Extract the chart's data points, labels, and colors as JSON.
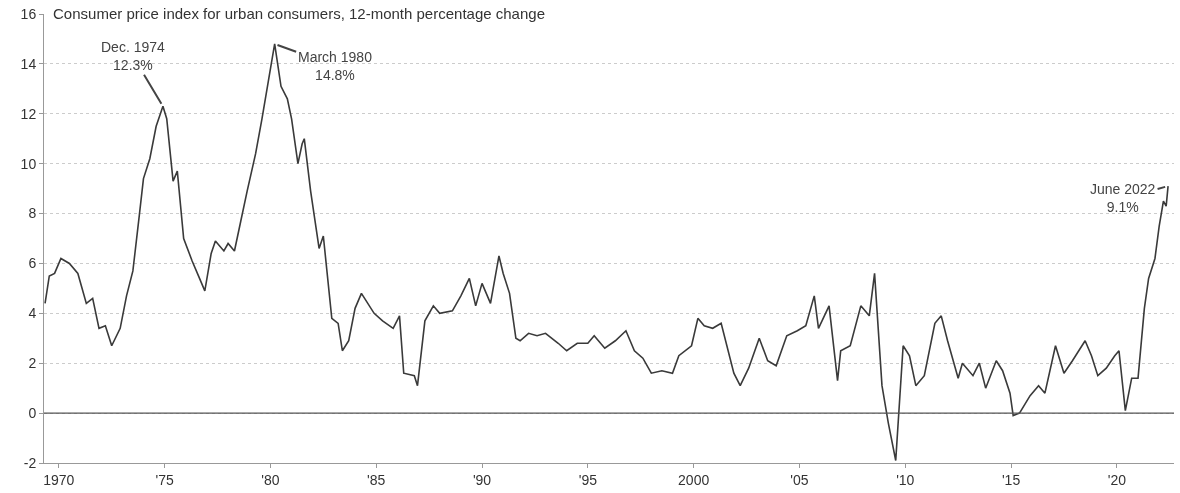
{
  "chart_data": {
    "type": "line",
    "title": "Consumer price index for urban consumers, 12-month percentage change",
    "x": [
      1969.35,
      1969.55,
      1969.8,
      1970.1,
      1970.5,
      1970.9,
      1971.3,
      1971.6,
      1971.9,
      1972.2,
      1972.5,
      1972.9,
      1973.2,
      1973.5,
      1973.8,
      1974.0,
      1974.3,
      1974.6,
      1974.92,
      1975.1,
      1975.4,
      1975.6,
      1975.9,
      1976.3,
      1976.6,
      1976.9,
      1977.2,
      1977.4,
      1977.8,
      1978.0,
      1978.3,
      1978.6,
      1978.9,
      1979.3,
      1979.6,
      1979.9,
      1980.2,
      1980.5,
      1980.8,
      1981.0,
      1981.3,
      1981.5,
      1981.6,
      1981.9,
      1982.3,
      1982.5,
      1982.9,
      1983.2,
      1983.4,
      1983.7,
      1984.0,
      1984.3,
      1984.9,
      1985.3,
      1985.8,
      1986.1,
      1986.3,
      1986.8,
      1986.95,
      1987.3,
      1987.7,
      1988.0,
      1988.6,
      1989.0,
      1989.4,
      1989.7,
      1990.0,
      1990.4,
      1990.8,
      1991.0,
      1991.3,
      1991.6,
      1991.8,
      1992.2,
      1992.6,
      1993.0,
      1993.6,
      1994.0,
      1994.5,
      1995.0,
      1995.3,
      1995.8,
      1996.3,
      1996.8,
      1997.2,
      1997.6,
      1998.0,
      1998.5,
      1999.0,
      1999.3,
      1999.9,
      2000.2,
      2000.5,
      2000.9,
      2001.3,
      2001.9,
      2002.2,
      2002.6,
      2003.1,
      2003.5,
      2003.9,
      2004.4,
      2004.9,
      2005.3,
      2005.7,
      2005.9,
      2006.4,
      2006.8,
      2006.95,
      2007.4,
      2007.9,
      2008.3,
      2008.55,
      2008.9,
      2009.2,
      2009.55,
      2009.9,
      2010.2,
      2010.5,
      2010.9,
      2011.4,
      2011.7,
      2012.0,
      2012.5,
      2012.7,
      2013.2,
      2013.5,
      2013.8,
      2014.3,
      2014.6,
      2014.95,
      2015.1,
      2015.4,
      2015.9,
      2016.3,
      2016.6,
      2017.1,
      2017.5,
      2017.9,
      2018.5,
      2018.8,
      2019.1,
      2019.5,
      2019.9,
      2020.1,
      2020.4,
      2020.7,
      2021.0,
      2021.3,
      2021.5,
      2021.8,
      2022.0,
      2022.2,
      2022.33,
      2022.42
    ],
    "series": [
      {
        "color": "#3a3a3a",
        "values": [
          4.4,
          5.5,
          5.6,
          6.2,
          6.0,
          5.6,
          4.4,
          4.6,
          3.4,
          3.5,
          2.7,
          3.4,
          4.7,
          5.7,
          7.9,
          9.4,
          10.2,
          11.5,
          12.3,
          11.8,
          9.3,
          9.7,
          7.0,
          6.1,
          5.5,
          4.9,
          6.4,
          6.9,
          6.5,
          6.8,
          6.5,
          7.7,
          8.9,
          10.4,
          11.8,
          13.3,
          14.8,
          13.1,
          12.6,
          11.8,
          10.0,
          10.8,
          11.0,
          8.9,
          6.6,
          7.1,
          3.8,
          3.6,
          2.5,
          2.9,
          4.2,
          4.8,
          4.0,
          3.7,
          3.4,
          3.9,
          1.6,
          1.5,
          1.1,
          3.7,
          4.3,
          4.0,
          4.1,
          4.7,
          5.4,
          4.3,
          5.2,
          4.4,
          6.3,
          5.6,
          4.8,
          3.0,
          2.9,
          3.2,
          3.1,
          3.2,
          2.8,
          2.5,
          2.8,
          2.8,
          3.1,
          2.6,
          2.9,
          3.3,
          2.5,
          2.2,
          1.6,
          1.7,
          1.6,
          2.3,
          2.7,
          3.8,
          3.5,
          3.4,
          3.6,
          1.6,
          1.1,
          1.8,
          3.0,
          2.1,
          1.9,
          3.1,
          3.3,
          3.5,
          4.7,
          3.4,
          4.3,
          1.3,
          2.5,
          2.7,
          4.3,
          3.9,
          5.6,
          1.1,
          -0.4,
          -1.9,
          2.7,
          2.3,
          1.1,
          1.5,
          3.6,
          3.9,
          2.9,
          1.4,
          2.0,
          1.5,
          2.0,
          1.0,
          2.1,
          1.7,
          0.8,
          -0.1,
          0.0,
          0.7,
          1.1,
          0.8,
          2.7,
          1.6,
          2.1,
          2.9,
          2.3,
          1.5,
          1.8,
          2.3,
          2.5,
          0.1,
          1.4,
          1.4,
          4.2,
          5.4,
          6.2,
          7.5,
          8.5,
          8.3,
          9.1
        ]
      }
    ],
    "xlim": [
      1969.3,
      2022.7
    ],
    "xticks": [
      1970,
      {
        "value": 1975,
        "label": "'75"
      },
      {
        "value": 1980,
        "label": "'80"
      },
      {
        "value": 1985,
        "label": "'85"
      },
      {
        "value": 1990,
        "label": "'90"
      },
      {
        "value": 1995,
        "label": "'95"
      },
      2000,
      {
        "value": 2005,
        "label": "'05"
      },
      {
        "value": 2010,
        "label": "'10"
      },
      {
        "value": 2015,
        "label": "'15"
      },
      {
        "value": 2020,
        "label": "'20"
      }
    ],
    "ylim": [
      -2,
      16
    ],
    "yticks": [
      -2,
      0,
      2,
      4,
      6,
      8,
      10,
      12,
      14,
      16
    ],
    "grid": "y",
    "marker": "none",
    "line_style": "solid",
    "ref_lines": [
      {
        "axis": "y",
        "value": 0,
        "color": "#555555"
      }
    ],
    "annotations": [
      {
        "text": "Dec. 1974\n12.3%",
        "x": 1974.92,
        "y": 12.3
      },
      {
        "text": "March 1980\n14.8%",
        "x": 1980.2,
        "y": 14.8
      },
      {
        "text": "June 2022\n9.1%",
        "x": 2022.42,
        "y": 9.1
      }
    ]
  }
}
